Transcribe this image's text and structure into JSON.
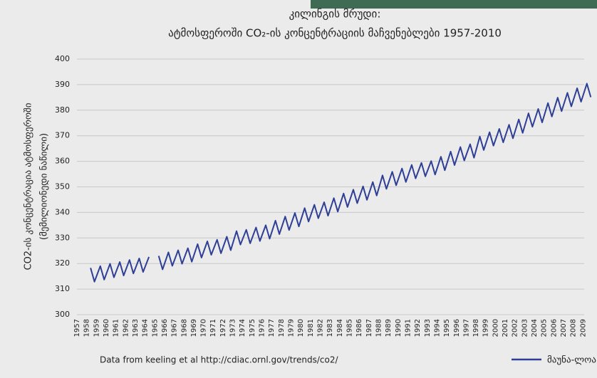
{
  "chart_data": {
    "type": "line",
    "title": "კილინგის მრუდი:",
    "subtitle": "ატმოსფეროში CO₂-ის კონცენტრაციის მაჩვენებლები 1957-2010",
    "ylabel": [
      "CO2-ის  კონცენტრაცია ატმოსფეროში",
      "(მემილიონედი ნაწილი)"
    ],
    "source": "Data from keeling et al http://cdiac.ornl.gov/trends/co2/",
    "ylim": [
      300,
      400
    ],
    "yticks": [
      300,
      310,
      320,
      330,
      340,
      350,
      360,
      370,
      380,
      390,
      400
    ],
    "xlim": [
      1957,
      2010
    ],
    "xticks": [
      1957,
      1958,
      1959,
      1960,
      1961,
      1962,
      1963,
      1964,
      1965,
      1966,
      1967,
      1968,
      1969,
      1970,
      1971,
      1972,
      1973,
      1974,
      1975,
      1976,
      1977,
      1978,
      1979,
      1980,
      1981,
      1982,
      1983,
      1984,
      1985,
      1986,
      1987,
      1988,
      1989,
      1990,
      1991,
      1992,
      1993,
      1994,
      1995,
      1996,
      1997,
      1998,
      1999,
      2000,
      2001,
      2002,
      2003,
      2004,
      2005,
      2006,
      2007,
      2008,
      2009
    ],
    "grid": true,
    "x": [
      1958.4,
      1958.8,
      1959.4,
      1959.8,
      1960.4,
      1960.8,
      1961.4,
      1961.8,
      1962.4,
      1962.8,
      1963.4,
      1963.8,
      1964.4,
      1964.8,
      1965.4,
      1965.8,
      1966.4,
      1966.8,
      1967.4,
      1967.8,
      1968.4,
      1968.8,
      1969.4,
      1969.8,
      1970.4,
      1970.8,
      1971.4,
      1971.8,
      1972.4,
      1972.8,
      1973.4,
      1973.8,
      1974.4,
      1974.8,
      1975.4,
      1975.8,
      1976.4,
      1976.8,
      1977.4,
      1977.8,
      1978.4,
      1978.8,
      1979.4,
      1979.8,
      1980.4,
      1980.8,
      1981.4,
      1981.8,
      1982.4,
      1982.8,
      1983.4,
      1983.8,
      1984.4,
      1984.8,
      1985.4,
      1985.8,
      1986.4,
      1986.8,
      1987.4,
      1987.8,
      1988.4,
      1988.8,
      1989.4,
      1989.8,
      1990.4,
      1990.8,
      1991.4,
      1991.8,
      1992.4,
      1992.8,
      1993.4,
      1993.8,
      1994.4,
      1994.8,
      1995.4,
      1995.8,
      1996.4,
      1996.8,
      1997.4,
      1997.8,
      1998.4,
      1998.8,
      1999.4,
      1999.8,
      2000.4,
      2000.8,
      2001.4,
      2001.8,
      2002.4,
      2002.8,
      2003.4,
      2003.8,
      2004.4,
      2004.8,
      2005.4,
      2005.8,
      2006.4,
      2006.8,
      2007.4,
      2007.8,
      2008.4,
      2008.8,
      2009.4,
      2009.8
    ],
    "series": [
      {
        "name": "მაუნა-ლოა, ჰავაი",
        "color": "#2e3f95",
        "values": [
          318.3,
          312.9,
          319,
          313.7,
          319.9,
          314.6,
          320.6,
          315.3,
          321.4,
          316.1,
          322,
          316.7,
          322.6,
          null,
          323,
          317.7,
          324.4,
          319.1,
          325.2,
          319.9,
          326,
          320.7,
          327.6,
          322.3,
          328.7,
          323.4,
          329.3,
          324,
          330.5,
          325.2,
          332.7,
          327.4,
          333.2,
          327.9,
          334.1,
          328.8,
          335,
          329.7,
          336.8,
          331.5,
          338.4,
          333.1,
          339.8,
          334.5,
          341.7,
          336.4,
          343,
          337.7,
          344,
          338.7,
          345.6,
          340.3,
          347.4,
          342.1,
          348.9,
          343.6,
          350.2,
          344.9,
          351.9,
          346.6,
          354.5,
          349.2,
          355.9,
          350.6,
          357.2,
          351.9,
          358.6,
          353.3,
          359.4,
          354.1,
          360.1,
          354.8,
          361.8,
          356.5,
          363.8,
          358.5,
          365.6,
          360.3,
          366.7,
          361.4,
          369.7,
          364.4,
          371.4,
          366.1,
          372.7,
          367.4,
          374.3,
          369,
          376.4,
          371.1,
          378.8,
          373.5,
          380.5,
          375.2,
          382.8,
          377.5,
          384.9,
          379.6,
          386.8,
          381.5,
          388.6,
          383.3,
          390.4,
          385.1
        ]
      }
    ]
  }
}
